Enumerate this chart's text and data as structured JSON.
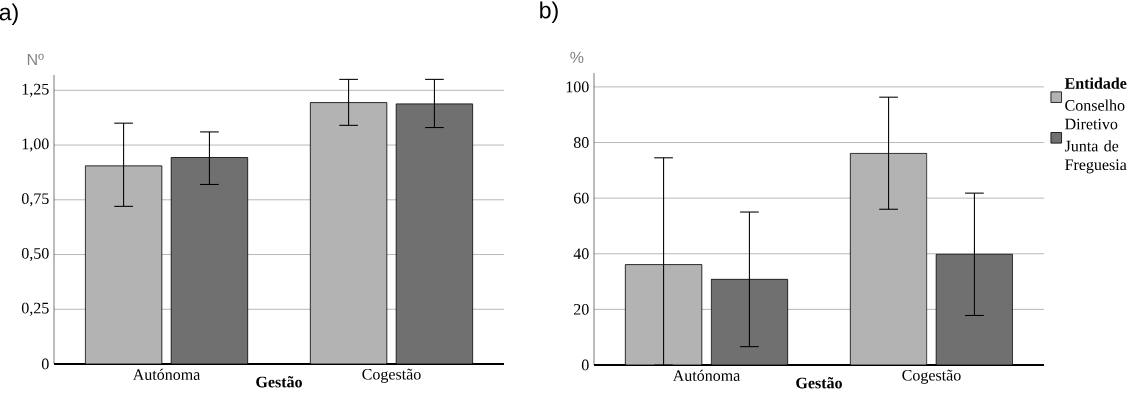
{
  "chart_data": [
    {
      "type": "bar",
      "title": "a)",
      "ylabel": "Nº",
      "xlabel": "Gestão",
      "categories": [
        "Autónoma",
        "Cogestão"
      ],
      "series": [
        {
          "color": "#b3b3b3",
          "values": [
            0.905,
            1.194
          ],
          "errors": [
            [
              0.72,
              1.1
            ],
            [
              1.09,
              1.3
            ]
          ]
        },
        {
          "color": "#707070",
          "values": [
            0.943,
            1.188
          ],
          "errors": [
            [
              0.82,
              1.06
            ],
            [
              1.08,
              1.3
            ]
          ]
        }
      ],
      "ylim": [
        0,
        1.32
      ],
      "yticks": [
        0,
        {
          "value": 0.25,
          "label": "0,25"
        },
        {
          "value": 0.5,
          "label": "0,50"
        },
        {
          "value": 0.75,
          "label": "0,75"
        },
        {
          "value": 1.0,
          "label": "1,00"
        },
        {
          "value": 1.25,
          "label": "1,25"
        }
      ],
      "grid": "y"
    },
    {
      "type": "bar",
      "title": "b)",
      "ylabel": "%",
      "xlabel": "Gestão",
      "categories": [
        "Autónoma",
        "Cogestão"
      ],
      "legend_title": "Entidade",
      "legend": "top right",
      "series": [
        {
          "name": "Conselho Diretivo",
          "color": "#b3b3b3",
          "values": [
            36.1,
            76.1
          ],
          "errors": [
            [
              0,
              74.5
            ],
            [
              56,
              96.3
            ]
          ]
        },
        {
          "name": "Junta de Freguesia",
          "color": "#707070",
          "values": [
            30.8,
            39.8
          ],
          "errors": [
            [
              6.6,
              55
            ],
            [
              17.8,
              61.8
            ]
          ]
        }
      ],
      "ylim": [
        0,
        105
      ],
      "yticks": [
        0,
        20,
        40,
        60,
        80,
        100
      ],
      "grid": "y"
    }
  ]
}
